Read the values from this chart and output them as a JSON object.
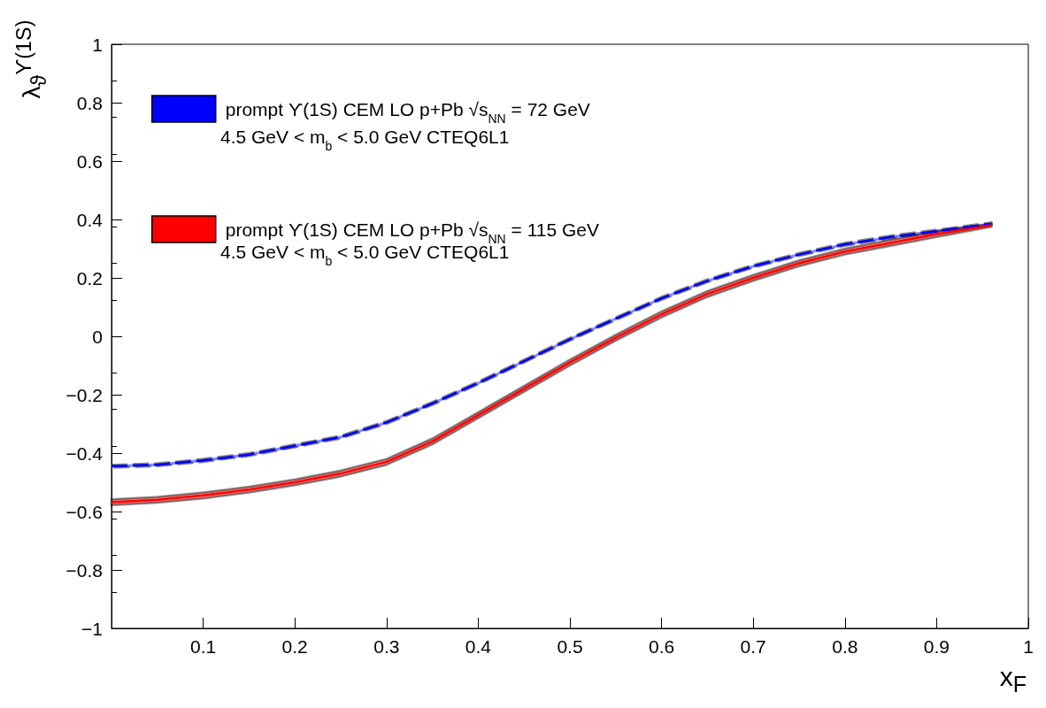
{
  "chart_data": {
    "type": "line",
    "xlabel": "x$_{F}$",
    "ylabel": "λ$_{ϑ}$$^{ϒ(1S)}$",
    "x": [
      0,
      0.05,
      0.1,
      0.15,
      0.2,
      0.25,
      0.3,
      0.35,
      0.4,
      0.45,
      0.5,
      0.55,
      0.6,
      0.65,
      0.7,
      0.75,
      0.8,
      0.85,
      0.9,
      0.96
    ],
    "series": [
      {
        "name": "prompt ϒ(1S) CEM LO p+Pb √s$_{NN}$ = 72 GeV",
        "color": "#0000ff",
        "line_style": "dashed",
        "values": [
          -0.445,
          -0.44,
          -0.425,
          -0.405,
          -0.375,
          -0.345,
          -0.295,
          -0.23,
          -0.16,
          -0.085,
          -0.01,
          0.06,
          0.13,
          0.19,
          0.24,
          0.28,
          0.315,
          0.34,
          0.36,
          0.385
        ],
        "lower": [
          -0.45,
          -0.445,
          -0.43,
          -0.41,
          -0.38,
          -0.35,
          -0.3,
          -0.235,
          -0.165,
          -0.09,
          -0.015,
          0.055,
          0.125,
          0.185,
          0.235,
          0.275,
          0.31,
          0.335,
          0.355,
          0.38
        ],
        "upper": [
          -0.44,
          -0.435,
          -0.42,
          -0.4,
          -0.37,
          -0.34,
          -0.29,
          -0.225,
          -0.155,
          -0.08,
          -0.005,
          0.065,
          0.135,
          0.195,
          0.245,
          0.285,
          0.32,
          0.345,
          0.365,
          0.39
        ]
      },
      {
        "name": "prompt ϒ(1S) CEM LO p+Pb √s$_{NN}$ = 115 GeV",
        "color": "#ff0000",
        "line_style": "solid",
        "values": [
          -0.568,
          -0.56,
          -0.545,
          -0.525,
          -0.5,
          -0.47,
          -0.43,
          -0.36,
          -0.27,
          -0.18,
          -0.09,
          -0.005,
          0.075,
          0.145,
          0.2,
          0.25,
          0.29,
          0.32,
          0.35,
          0.38
        ],
        "lower": [
          -0.578,
          -0.57,
          -0.555,
          -0.535,
          -0.51,
          -0.48,
          -0.44,
          -0.37,
          -0.28,
          -0.19,
          -0.1,
          -0.015,
          0.065,
          0.135,
          0.19,
          0.24,
          0.28,
          0.31,
          0.34,
          0.375
        ],
        "upper": [
          -0.558,
          -0.55,
          -0.535,
          -0.515,
          -0.49,
          -0.46,
          -0.42,
          -0.35,
          -0.26,
          -0.17,
          -0.08,
          0.005,
          0.085,
          0.155,
          0.21,
          0.26,
          0.3,
          0.33,
          0.36,
          0.385
        ]
      }
    ],
    "xlim": [
      0,
      1
    ],
    "xticks": [
      {
        "value": 0,
        "label": null
      },
      0.1,
      0.2,
      0.3,
      0.4,
      0.5,
      0.6,
      0.7,
      0.8,
      0.9,
      1
    ],
    "ylim": [
      -1,
      1
    ],
    "yticks": [
      {
        "value": -1,
        "label": "−1"
      },
      {
        "value": -0.8,
        "label": "−0.8"
      },
      {
        "value": -0.6,
        "label": "−0.6"
      },
      {
        "value": -0.4,
        "label": "−0.4"
      },
      {
        "value": -0.2,
        "label": "−0.2"
      },
      0,
      0.2,
      0.4,
      0.6,
      0.8,
      1
    ],
    "grid": false,
    "legend": "top left",
    "annotations": [
      "4.5 GeV < m$_{b}$ < 5.0 GeV CTEQ6L1",
      "4.5 GeV < m$_{b}$ < 5.0 GeV CTEQ6L1"
    ],
    "marker": "none"
  }
}
